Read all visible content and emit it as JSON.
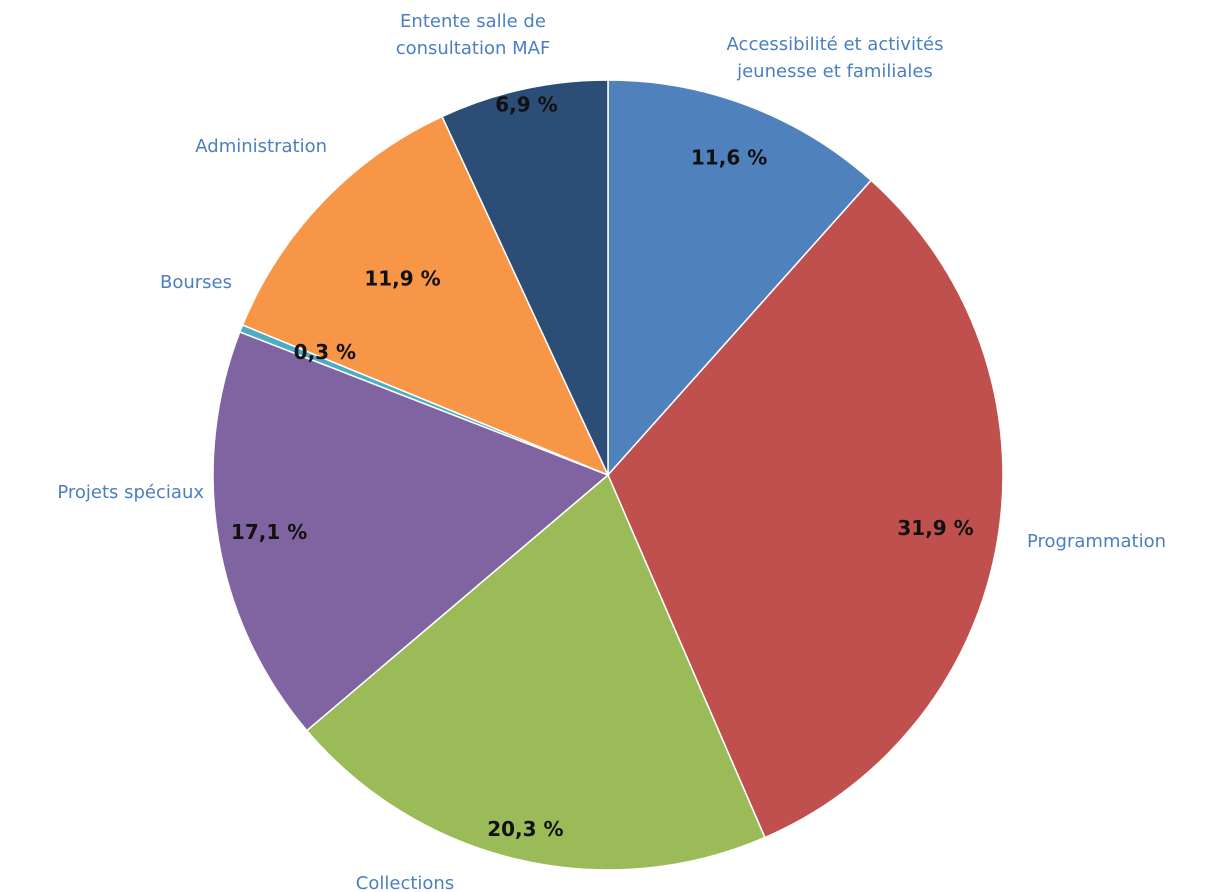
{
  "chart_data": {
    "type": "pie",
    "start_angle_deg": 0,
    "direction": "clockwise",
    "slices": [
      {
        "label_lines": [
          "Accessibilité et activités",
          "jeunesse et familiales"
        ],
        "value": 11.6,
        "value_label": "11,6 %",
        "color": "#4f81bd"
      },
      {
        "label_lines": [
          "Programmation"
        ],
        "value": 31.9,
        "value_label": "31,9 %",
        "color": "#c0504d"
      },
      {
        "label_lines": [
          "Collections"
        ],
        "value": 20.3,
        "value_label": "20,3 %",
        "color": "#9bbb59"
      },
      {
        "label_lines": [
          "Projets spéciaux"
        ],
        "value": 17.1,
        "value_label": "17,1 %",
        "color": "#8064a2"
      },
      {
        "label_lines": [
          "Bourses"
        ],
        "value": 0.3,
        "value_label": "0,3 %",
        "color": "#4bacc6"
      },
      {
        "label_lines": [
          "Administration"
        ],
        "value": 11.9,
        "value_label": "11,9 %",
        "color": "#f79646"
      },
      {
        "label_lines": [
          "Entente salle de",
          "consultation MAF"
        ],
        "value": 6.9,
        "value_label": "6,9 %",
        "color": "#2c4d75"
      }
    ]
  }
}
